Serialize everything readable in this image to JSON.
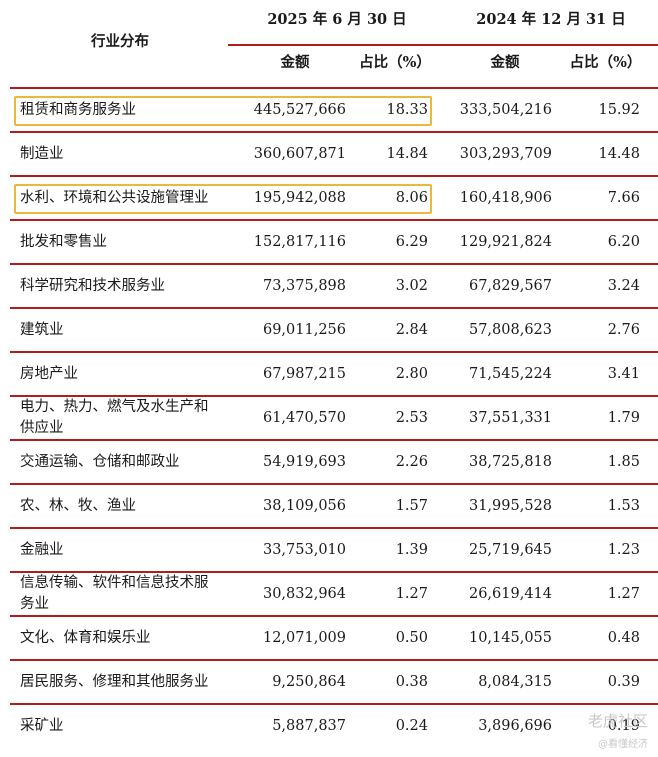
{
  "header": {
    "industry": "行业分布",
    "period1": "2025 年 6 月 30 日",
    "period2": "2024 年 12 月 31 日",
    "amount1": "金额",
    "pct1": "占比（%）",
    "amount2": "金额",
    "pct2": "占比（%）"
  },
  "rows": [
    {
      "name": [
        "租赁和商务服务业"
      ],
      "a1": "445,527,666",
      "p1": "18.33",
      "a2": "333,504,216",
      "p2": "15.92"
    },
    {
      "name": [
        "制造业"
      ],
      "a1": "360,607,871",
      "p1": "14.84",
      "a2": "303,293,709",
      "p2": "14.48"
    },
    {
      "name": [
        "水利、环境和公共设施管理业"
      ],
      "a1": "195,942,088",
      "p1": "8.06",
      "a2": "160,418,906",
      "p2": "7.66"
    },
    {
      "name": [
        "批发和零售业"
      ],
      "a1": "152,817,116",
      "p1": "6.29",
      "a2": "129,921,824",
      "p2": "6.20"
    },
    {
      "name": [
        "科学研究和技术服务业"
      ],
      "a1": "73,375,898",
      "p1": "3.02",
      "a2": "67,829,567",
      "p2": "3.24"
    },
    {
      "name": [
        "建筑业"
      ],
      "a1": "69,011,256",
      "p1": "2.84",
      "a2": "57,808,623",
      "p2": "2.76"
    },
    {
      "name": [
        "房地产业"
      ],
      "a1": "67,987,215",
      "p1": "2.80",
      "a2": "71,545,224",
      "p2": "3.41"
    },
    {
      "name": [
        "电力、热力、燃气及水生产和",
        "供应业"
      ],
      "a1": "61,470,570",
      "p1": "2.53",
      "a2": "37,551,331",
      "p2": "1.79"
    },
    {
      "name": [
        "交通运输、仓储和邮政业"
      ],
      "a1": "54,919,693",
      "p1": "2.26",
      "a2": "38,725,818",
      "p2": "1.85"
    },
    {
      "name": [
        "农、林、牧、渔业"
      ],
      "a1": "38,109,056",
      "p1": "1.57",
      "a2": "31,995,528",
      "p2": "1.53"
    },
    {
      "name": [
        "金融业"
      ],
      "a1": "33,753,010",
      "p1": "1.39",
      "a2": "25,719,645",
      "p2": "1.23"
    },
    {
      "name": [
        "信息传输、软件和信息技术服",
        "务业"
      ],
      "a1": "30,832,964",
      "p1": "1.27",
      "a2": "26,619,414",
      "p2": "1.27"
    },
    {
      "name": [
        "文化、体育和娱乐业"
      ],
      "a1": "12,071,009",
      "p1": "0.50",
      "a2": "10,145,055",
      "p2": "0.48"
    },
    {
      "name": [
        "居民服务、修理和其他服务业"
      ],
      "a1": "9,250,864",
      "p1": "0.38",
      "a2": "8,084,315",
      "p2": "0.39"
    },
    {
      "name": [
        "采矿业"
      ],
      "a1": "5,887,837",
      "p1": "0.24",
      "a2": "3,896,696",
      "p2": "0.19"
    }
  ],
  "highlighted_rows": [
    0,
    2
  ],
  "colors": {
    "rule": "#b01d1d",
    "highlight": "#e8b93c",
    "watermark": "#c9c9c9"
  },
  "watermark": {
    "line1": "老虎社区",
    "line2": "@看懂经济"
  }
}
